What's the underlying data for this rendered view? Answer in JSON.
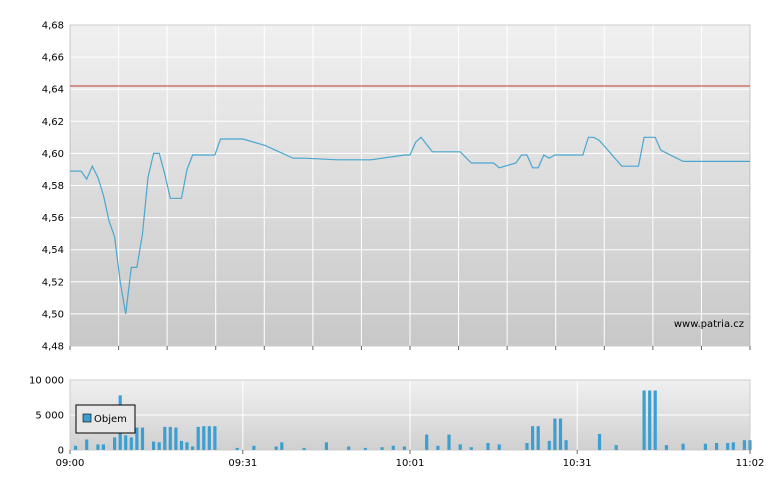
{
  "watermark": "www.patria.cz",
  "legend_label": "Objem",
  "colors": {
    "line": "#4aa7cf",
    "bar": "#3d9fd0",
    "ref_line": "#c0392b",
    "grid": "#ffffff"
  },
  "chart_data": [
    {
      "type": "line",
      "title": "",
      "ylim": [
        4.48,
        4.68
      ],
      "y_ticks": [
        "4,48",
        "4,50",
        "4,52",
        "4,54",
        "4,56",
        "4,58",
        "4,60",
        "4,62",
        "4,64",
        "4,66",
        "4,68"
      ],
      "reference_line": 4.642,
      "x_range": [
        "09:00",
        "11:02"
      ],
      "x": [
        "09:00",
        "09:02",
        "09:03",
        "09:04",
        "09:05",
        "09:06",
        "09:07",
        "09:08",
        "09:09",
        "09:10",
        "09:11",
        "09:12",
        "09:13",
        "09:14",
        "09:15",
        "09:16",
        "09:17",
        "09:18",
        "09:19",
        "09:20",
        "09:21",
        "09:22",
        "09:23",
        "09:24",
        "09:25",
        "09:26",
        "09:27",
        "09:28",
        "09:31",
        "09:35",
        "09:40",
        "09:42",
        "09:48",
        "09:50",
        "09:52",
        "09:54",
        "10:00",
        "10:01",
        "10:02",
        "10:03",
        "10:05",
        "10:10",
        "10:12",
        "10:14",
        "10:16",
        "10:17",
        "10:20",
        "10:21",
        "10:22",
        "10:23",
        "10:24",
        "10:25",
        "10:26",
        "10:27",
        "10:28",
        "10:32",
        "10:33",
        "10:34",
        "10:35",
        "10:39",
        "10:40",
        "10:41",
        "10:42",
        "10:43",
        "10:44",
        "10:45",
        "10:46",
        "10:50",
        "10:54",
        "11:00",
        "11:02"
      ],
      "series": [
        {
          "values": [
            4.589,
            4.589,
            4.584,
            4.592,
            4.585,
            4.574,
            4.558,
            4.548,
            4.52,
            4.5,
            4.529,
            4.529,
            4.55,
            4.585,
            4.6,
            4.6,
            4.587,
            4.572,
            4.572,
            4.572,
            4.59,
            4.599,
            4.599,
            4.599,
            4.599,
            4.599,
            4.609,
            4.609,
            4.609,
            4.605,
            4.597,
            4.597,
            4.596,
            4.596,
            4.596,
            4.596,
            4.599,
            4.599,
            4.607,
            4.61,
            4.601,
            4.601,
            4.594,
            4.594,
            4.594,
            4.591,
            4.594,
            4.599,
            4.599,
            4.591,
            4.591,
            4.599,
            4.597,
            4.599,
            4.599,
            4.599,
            4.61,
            4.61,
            4.608,
            4.592,
            4.592,
            4.592,
            4.592,
            4.61,
            4.61,
            4.61,
            4.602,
            4.595,
            4.595,
            4.595,
            4.595
          ]
        }
      ]
    },
    {
      "type": "bar",
      "title": "",
      "ylim": [
        0,
        10000
      ],
      "y_ticks": [
        "0",
        "5 000",
        "10 000"
      ],
      "x_ticks": [
        "09:00",
        "09:31",
        "10:01",
        "10:31",
        "11:02"
      ],
      "series": [
        {
          "name": "Objem",
          "x": [
            "09:01",
            "09:03",
            "09:05",
            "09:06",
            "09:08",
            "09:09",
            "09:10",
            "09:11",
            "09:12",
            "09:13",
            "09:15",
            "09:16",
            "09:17",
            "09:18",
            "09:19",
            "09:20",
            "09:21",
            "09:22",
            "09:23",
            "09:24",
            "09:25",
            "09:26",
            "09:30",
            "09:33",
            "09:37",
            "09:38",
            "09:42",
            "09:46",
            "09:50",
            "09:53",
            "09:56",
            "09:58",
            "10:00",
            "10:04",
            "10:06",
            "10:08",
            "10:10",
            "10:12",
            "10:15",
            "10:17",
            "10:22",
            "10:23",
            "10:24",
            "10:26",
            "10:27",
            "10:28",
            "10:29",
            "10:35",
            "10:38",
            "10:43",
            "10:44",
            "10:45",
            "10:47",
            "10:50",
            "10:54",
            "10:56",
            "10:58",
            "10:59",
            "11:01",
            "11:02"
          ],
          "values": [
            600,
            1500,
            800,
            800,
            1800,
            7800,
            2100,
            1800,
            3200,
            3200,
            1200,
            1100,
            3300,
            3300,
            3200,
            1300,
            1100,
            500,
            3300,
            3400,
            3400,
            3400,
            300,
            600,
            500,
            1100,
            300,
            1100,
            500,
            300,
            400,
            600,
            500,
            2200,
            600,
            2200,
            800,
            400,
            1000,
            800,
            1000,
            3400,
            3400,
            1300,
            4500,
            4500,
            1400,
            2300,
            700,
            8500,
            8500,
            8500,
            700,
            900,
            900,
            1000,
            1000,
            1100,
            1400,
            1400
          ]
        }
      ]
    }
  ]
}
